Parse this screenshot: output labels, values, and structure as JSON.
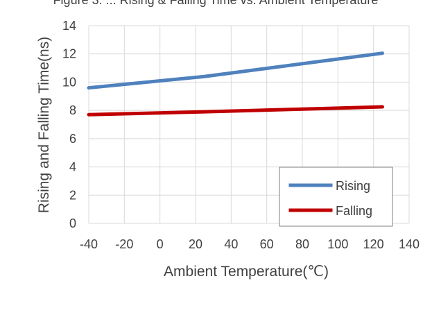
{
  "caption_partial": "Figure 3. ...  Rising & Falling Time vs. Ambient Temperature",
  "chart_data": {
    "type": "line",
    "title": "",
    "xlabel": "Ambient Temperature(℃)",
    "ylabel": "Rising and Falling Time(ns)",
    "xlim": [
      -40,
      140
    ],
    "ylim": [
      0,
      14
    ],
    "xticks": [
      -40,
      -20,
      0,
      20,
      40,
      60,
      80,
      100,
      120,
      140
    ],
    "yticks": [
      0,
      2,
      4,
      6,
      8,
      10,
      12,
      14
    ],
    "grid": true,
    "legend_position": "bottom-right",
    "series": [
      {
        "name": "Rising",
        "color": "#4f81bd",
        "x": [
          -40,
          25,
          125
        ],
        "y": [
          9.6,
          10.4,
          12.05
        ]
      },
      {
        "name": "Falling",
        "color": "#c00000",
        "x": [
          -40,
          25,
          125
        ],
        "y": [
          7.7,
          7.9,
          8.25
        ]
      }
    ]
  }
}
